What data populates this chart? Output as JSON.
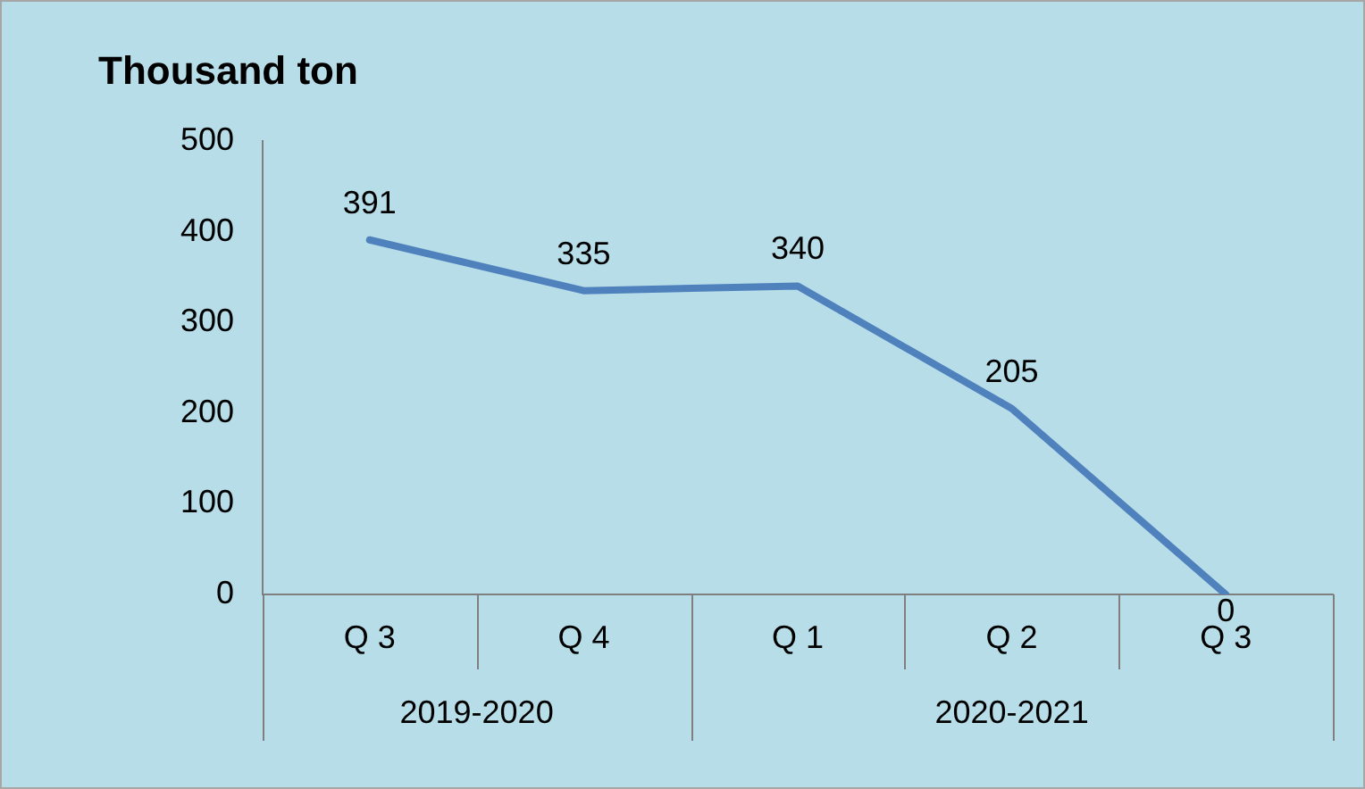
{
  "chart_data": {
    "type": "line",
    "ylabel": "Thousand ton",
    "categories": [
      "Q 3",
      "Q 4",
      "Q 1",
      "Q 2",
      "Q 3"
    ],
    "series": [
      {
        "color": "#4f81bd",
        "values": [
          391,
          335,
          340,
          205,
          0
        ]
      }
    ],
    "ylim": [
      0,
      500
    ],
    "yticks": [
      0,
      100,
      200,
      300,
      400,
      500
    ],
    "grid": false,
    "legend": false,
    "marker": "none",
    "line_style": "solid",
    "data_labels": true,
    "annotations": [
      "2019-2020",
      "2020-2021"
    ]
  }
}
